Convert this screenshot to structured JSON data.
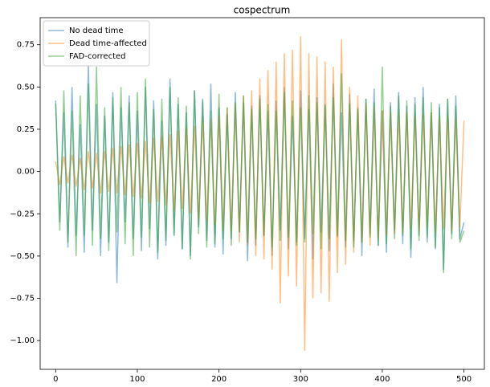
{
  "chart_data": {
    "type": "line",
    "title": "cospectrum",
    "x": [
      0,
      5,
      10,
      15,
      20,
      25,
      30,
      35,
      40,
      45,
      50,
      55,
      60,
      65,
      70,
      75,
      80,
      85,
      90,
      95,
      100,
      105,
      110,
      115,
      120,
      125,
      130,
      135,
      140,
      145,
      150,
      155,
      160,
      165,
      170,
      175,
      180,
      185,
      190,
      195,
      200,
      205,
      210,
      215,
      220,
      225,
      230,
      235,
      240,
      245,
      250,
      255,
      260,
      265,
      270,
      275,
      280,
      285,
      290,
      295,
      300,
      305,
      310,
      315,
      320,
      325,
      330,
      335,
      340,
      345,
      350,
      355,
      360,
      365,
      370,
      375,
      380,
      385,
      390,
      395,
      400,
      405,
      410,
      415,
      420,
      425,
      430,
      435,
      440,
      445,
      450,
      455,
      460,
      465,
      470,
      475,
      480,
      485,
      490,
      495,
      500
    ],
    "series": [
      {
        "name": "No dead time",
        "color": "#1f77b4",
        "values": [
          0.42,
          -0.3,
          0.35,
          -0.45,
          0.5,
          -0.38,
          0.28,
          -0.48,
          0.63,
          -0.35,
          0.4,
          -0.5,
          0.33,
          -0.42,
          0.47,
          -0.66,
          0.38,
          -0.3,
          0.45,
          -0.4,
          0.36,
          -0.47,
          0.5,
          -0.34,
          0.42,
          -0.52,
          0.3,
          -0.44,
          0.55,
          -0.38,
          0.4,
          -0.46,
          0.35,
          -0.5,
          0.48,
          -0.33,
          0.43,
          -0.41,
          0.52,
          -0.45,
          0.38,
          -0.49,
          0.34,
          -0.4,
          0.47,
          -0.36,
          0.41,
          -0.53,
          0.39,
          -0.44,
          0.45,
          -0.38,
          0.36,
          -0.5,
          0.42,
          -0.35,
          0.5,
          -0.46,
          0.33,
          -0.42,
          0.48,
          -0.4,
          0.37,
          -0.52,
          0.44,
          -0.36,
          0.4,
          -0.47,
          0.52,
          -0.39,
          0.35,
          -0.45,
          0.46,
          -0.41,
          0.38,
          -0.5,
          0.43,
          -0.37,
          0.49,
          -0.44,
          0.36,
          -0.48,
          0.41,
          -0.35,
          0.47,
          -0.43,
          0.39,
          -0.51,
          0.44,
          -0.38,
          0.5,
          -0.42,
          0.35,
          -0.46,
          0.4,
          -0.58,
          0.43,
          -0.37,
          0.45,
          -0.4,
          -0.3
        ]
      },
      {
        "name": "Dead time-affected",
        "color": "#ff7f0e",
        "values": [
          0.06,
          -0.08,
          0.09,
          -0.07,
          0.1,
          -0.09,
          0.08,
          -0.11,
          0.12,
          -0.1,
          0.11,
          -0.13,
          0.12,
          -0.12,
          0.14,
          -0.13,
          0.15,
          -0.14,
          0.16,
          -0.15,
          0.17,
          -0.16,
          0.18,
          -0.19,
          0.2,
          -0.18,
          0.21,
          -0.2,
          0.22,
          -0.23,
          0.24,
          -0.22,
          0.26,
          -0.25,
          0.27,
          -0.28,
          0.3,
          -0.29,
          0.31,
          -0.32,
          0.33,
          -0.35,
          0.38,
          -0.36,
          0.4,
          -0.42,
          0.45,
          -0.44,
          0.48,
          -0.5,
          0.55,
          -0.52,
          0.6,
          -0.58,
          0.65,
          -0.78,
          0.7,
          -0.62,
          0.72,
          -0.68,
          0.8,
          -1.06,
          0.7,
          -0.75,
          0.68,
          -0.72,
          0.65,
          -0.77,
          0.62,
          -0.6,
          0.78,
          -0.55,
          0.5,
          -0.48,
          0.45,
          -0.42,
          0.4,
          -0.44,
          0.38,
          -0.4,
          0.36,
          -0.38,
          0.35,
          -0.37,
          0.34,
          -0.36,
          0.35,
          -0.34,
          0.33,
          -0.35,
          0.34,
          -0.33,
          0.35,
          -0.36,
          0.32,
          -0.34,
          0.33,
          -0.35,
          0.31,
          -0.33,
          0.3
        ]
      },
      {
        "name": "FAD-corrected",
        "color": "#2ca02c",
        "values": [
          0.4,
          -0.35,
          0.48,
          -0.42,
          0.36,
          -0.5,
          0.45,
          -0.38,
          0.52,
          -0.44,
          0.62,
          -0.4,
          0.38,
          -0.47,
          0.44,
          -0.36,
          0.5,
          -0.43,
          0.41,
          -0.5,
          0.47,
          -0.39,
          0.55,
          -0.45,
          0.37,
          -0.48,
          0.43,
          -0.41,
          0.5,
          -0.38,
          0.44,
          -0.46,
          0.39,
          -0.52,
          0.48,
          -0.37,
          0.42,
          -0.45,
          0.36,
          -0.43,
          0.46,
          -0.4,
          0.38,
          -0.44,
          0.41,
          -0.36,
          0.45,
          -0.42,
          0.37,
          -0.4,
          0.43,
          -0.38,
          0.4,
          -0.45,
          0.36,
          -0.41,
          0.47,
          -0.39,
          0.42,
          -0.44,
          0.38,
          -0.42,
          0.45,
          -0.37,
          0.41,
          -0.46,
          0.39,
          -0.4,
          0.44,
          -0.38,
          0.58,
          -0.41,
          0.4,
          -0.45,
          0.37,
          -0.42,
          0.43,
          -0.39,
          0.41,
          -0.44,
          0.62,
          -0.43,
          0.39,
          -0.4,
          0.45,
          -0.38,
          0.42,
          -0.46,
          0.4,
          -0.41,
          0.44,
          -0.39,
          0.41,
          -0.45,
          0.38,
          -0.6,
          0.43,
          -0.4,
          0.39,
          -0.42,
          -0.35
        ]
      }
    ],
    "xlim": [
      -19,
      525
    ],
    "xticks": [
      0,
      100,
      200,
      300,
      400,
      500
    ],
    "ylim": [
      -1.17,
      0.91
    ],
    "yticks": [
      {
        "value": -1,
        "label": "−1.00"
      },
      {
        "value": -0.75,
        "label": "−0.75"
      },
      {
        "value": -0.5,
        "label": "−0.50"
      },
      {
        "value": -0.25,
        "label": "−0.25"
      },
      {
        "value": 0,
        "label": "0.00"
      },
      0.25,
      {
        "value": 0.5,
        "label": "0.50"
      },
      0.75
    ],
    "legend": "upper left",
    "opacity": 0.5
  }
}
